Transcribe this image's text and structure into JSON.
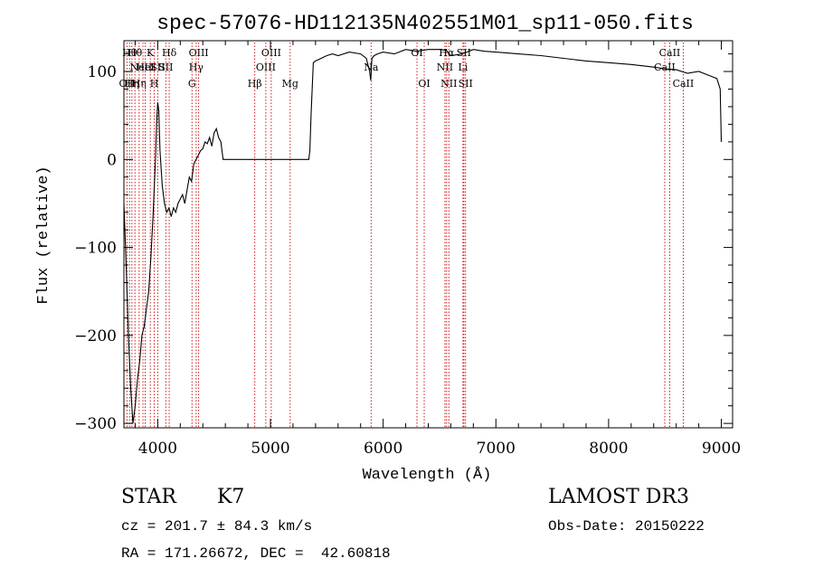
{
  "chart_data": {
    "type": "line",
    "title": "spec-57076-HD112135N402551M01_sp11-050.fits",
    "xlabel": "Wavelength (Å)",
    "ylabel": "Flux (relative)",
    "xlim": [
      3700,
      9100
    ],
    "ylim": [
      -305,
      135
    ],
    "xticks": [
      4000,
      5000,
      6000,
      7000,
      8000,
      9000
    ],
    "yticks": [
      -300,
      -200,
      -100,
      0,
      100
    ],
    "ytick_labels": [
      "−300",
      "−200",
      "−100",
      "0",
      "100"
    ],
    "grid": false,
    "series": [
      {
        "x": [
          3700,
          3720,
          3740,
          3760,
          3780,
          3800,
          3820,
          3840,
          3860,
          3880,
          3900,
          3920,
          3940,
          3960,
          3980,
          3990,
          4000,
          4010,
          4020,
          4040,
          4060,
          4080,
          4100,
          4120,
          4140,
          4160,
          4180,
          4200,
          4220,
          4240,
          4260,
          4280,
          4300,
          4320,
          4340,
          4360,
          4380,
          4400,
          4420,
          4440,
          4460,
          4480,
          4500,
          4520,
          4540,
          4560,
          4580,
          4590,
          4600,
          5000,
          5340,
          5350,
          5360,
          5380,
          5400,
          5450,
          5500,
          5550,
          5600,
          5700,
          5800,
          5850,
          5880,
          5890,
          5900,
          5920,
          5950,
          6000,
          6100,
          6200,
          6300,
          6400,
          6500,
          6560,
          6600,
          6700,
          6800,
          6900,
          7000,
          7200,
          7400,
          7600,
          7800,
          8000,
          8200,
          8400,
          8500,
          8600,
          8700,
          8800,
          8900,
          8960,
          8990,
          9000
        ],
        "y": [
          -50,
          -120,
          -200,
          -260,
          -300,
          -280,
          -250,
          -230,
          -200,
          -190,
          -170,
          -150,
          -110,
          -60,
          0,
          40,
          65,
          55,
          10,
          -30,
          -50,
          -60,
          -55,
          -65,
          -55,
          -60,
          -50,
          -45,
          -40,
          -50,
          -35,
          -20,
          -25,
          -5,
          0,
          5,
          10,
          12,
          20,
          18,
          25,
          15,
          30,
          35,
          25,
          20,
          0,
          0,
          0,
          0,
          0,
          10,
          50,
          110,
          112,
          115,
          118,
          120,
          118,
          122,
          120,
          115,
          100,
          90,
          115,
          118,
          120,
          122,
          120,
          125,
          123,
          125,
          125,
          124,
          118,
          120,
          125,
          123,
          122,
          120,
          118,
          115,
          112,
          110,
          108,
          105,
          103,
          102,
          98,
          100,
          95,
          92,
          80,
          20
        ]
      }
    ],
    "line_markers": [
      {
        "wavelength": 3727,
        "label": "OII",
        "row": 3
      },
      {
        "wavelength": 3750,
        "label": "Hθ",
        "row": 1
      },
      {
        "wavelength": 3771,
        "label": "Hη",
        "row": 3
      },
      {
        "wavelength": 3798,
        "label": "Hθ",
        "row": 1
      },
      {
        "wavelength": 3835,
        "label": "Hη",
        "row": 3
      },
      {
        "wavelength": 3869,
        "label": "NeIII",
        "row": 2
      },
      {
        "wavelength": 3889,
        "label": "HeI",
        "row": 2
      },
      {
        "wavelength": 3934,
        "label": "K",
        "row": 1
      },
      {
        "wavelength": 3969,
        "label": "H",
        "row": 3
      },
      {
        "wavelength": 4000,
        "label": "SII",
        "row": 2
      },
      {
        "wavelength": 4102,
        "label": "Hδ",
        "row": 1
      },
      {
        "wavelength": 4072,
        "label": "SII",
        "row": 2
      },
      {
        "wavelength": 4304,
        "label": "G",
        "row": 3
      },
      {
        "wavelength": 4341,
        "label": "Hγ",
        "row": 2
      },
      {
        "wavelength": 4363,
        "label": "OIII",
        "row": 1
      },
      {
        "wavelength": 4861,
        "label": "Hβ",
        "row": 3
      },
      {
        "wavelength": 4959,
        "label": "OIII",
        "row": 2
      },
      {
        "wavelength": 5007,
        "label": "OIII",
        "row": 1
      },
      {
        "wavelength": 5175,
        "label": "Mg",
        "row": 3
      },
      {
        "wavelength": 5893,
        "label": "Na",
        "row": 2
      },
      {
        "wavelength": 6300,
        "label": "OI",
        "row": 1
      },
      {
        "wavelength": 6364,
        "label": "OI",
        "row": 3
      },
      {
        "wavelength": 6548,
        "label": "NII",
        "row": 2
      },
      {
        "wavelength": 6563,
        "label": "Hα",
        "row": 1
      },
      {
        "wavelength": 6583,
        "label": "NII",
        "row": 3
      },
      {
        "wavelength": 6708,
        "label": "Li",
        "row": 2
      },
      {
        "wavelength": 6716,
        "label": "SII",
        "row": 1
      },
      {
        "wavelength": 6731,
        "label": "SII",
        "row": 3
      },
      {
        "wavelength": 8498,
        "label": "CaII",
        "row": 2
      },
      {
        "wavelength": 8542,
        "label": "CaII",
        "row": 1
      },
      {
        "wavelength": 8662,
        "label": "CaII",
        "row": 3
      }
    ]
  },
  "info": {
    "object_class": "STAR",
    "subclass": "K7",
    "survey": "LAMOST DR3",
    "cz": "cz = 201.7 ± 84.3 km/s",
    "obs_date": "Obs-Date: 20150222",
    "coords": "RA = 171.26672, DEC =  42.60818"
  },
  "colors": {
    "spectrum": "#000000",
    "marker_line": "#cc0000",
    "axes": "#000000"
  }
}
